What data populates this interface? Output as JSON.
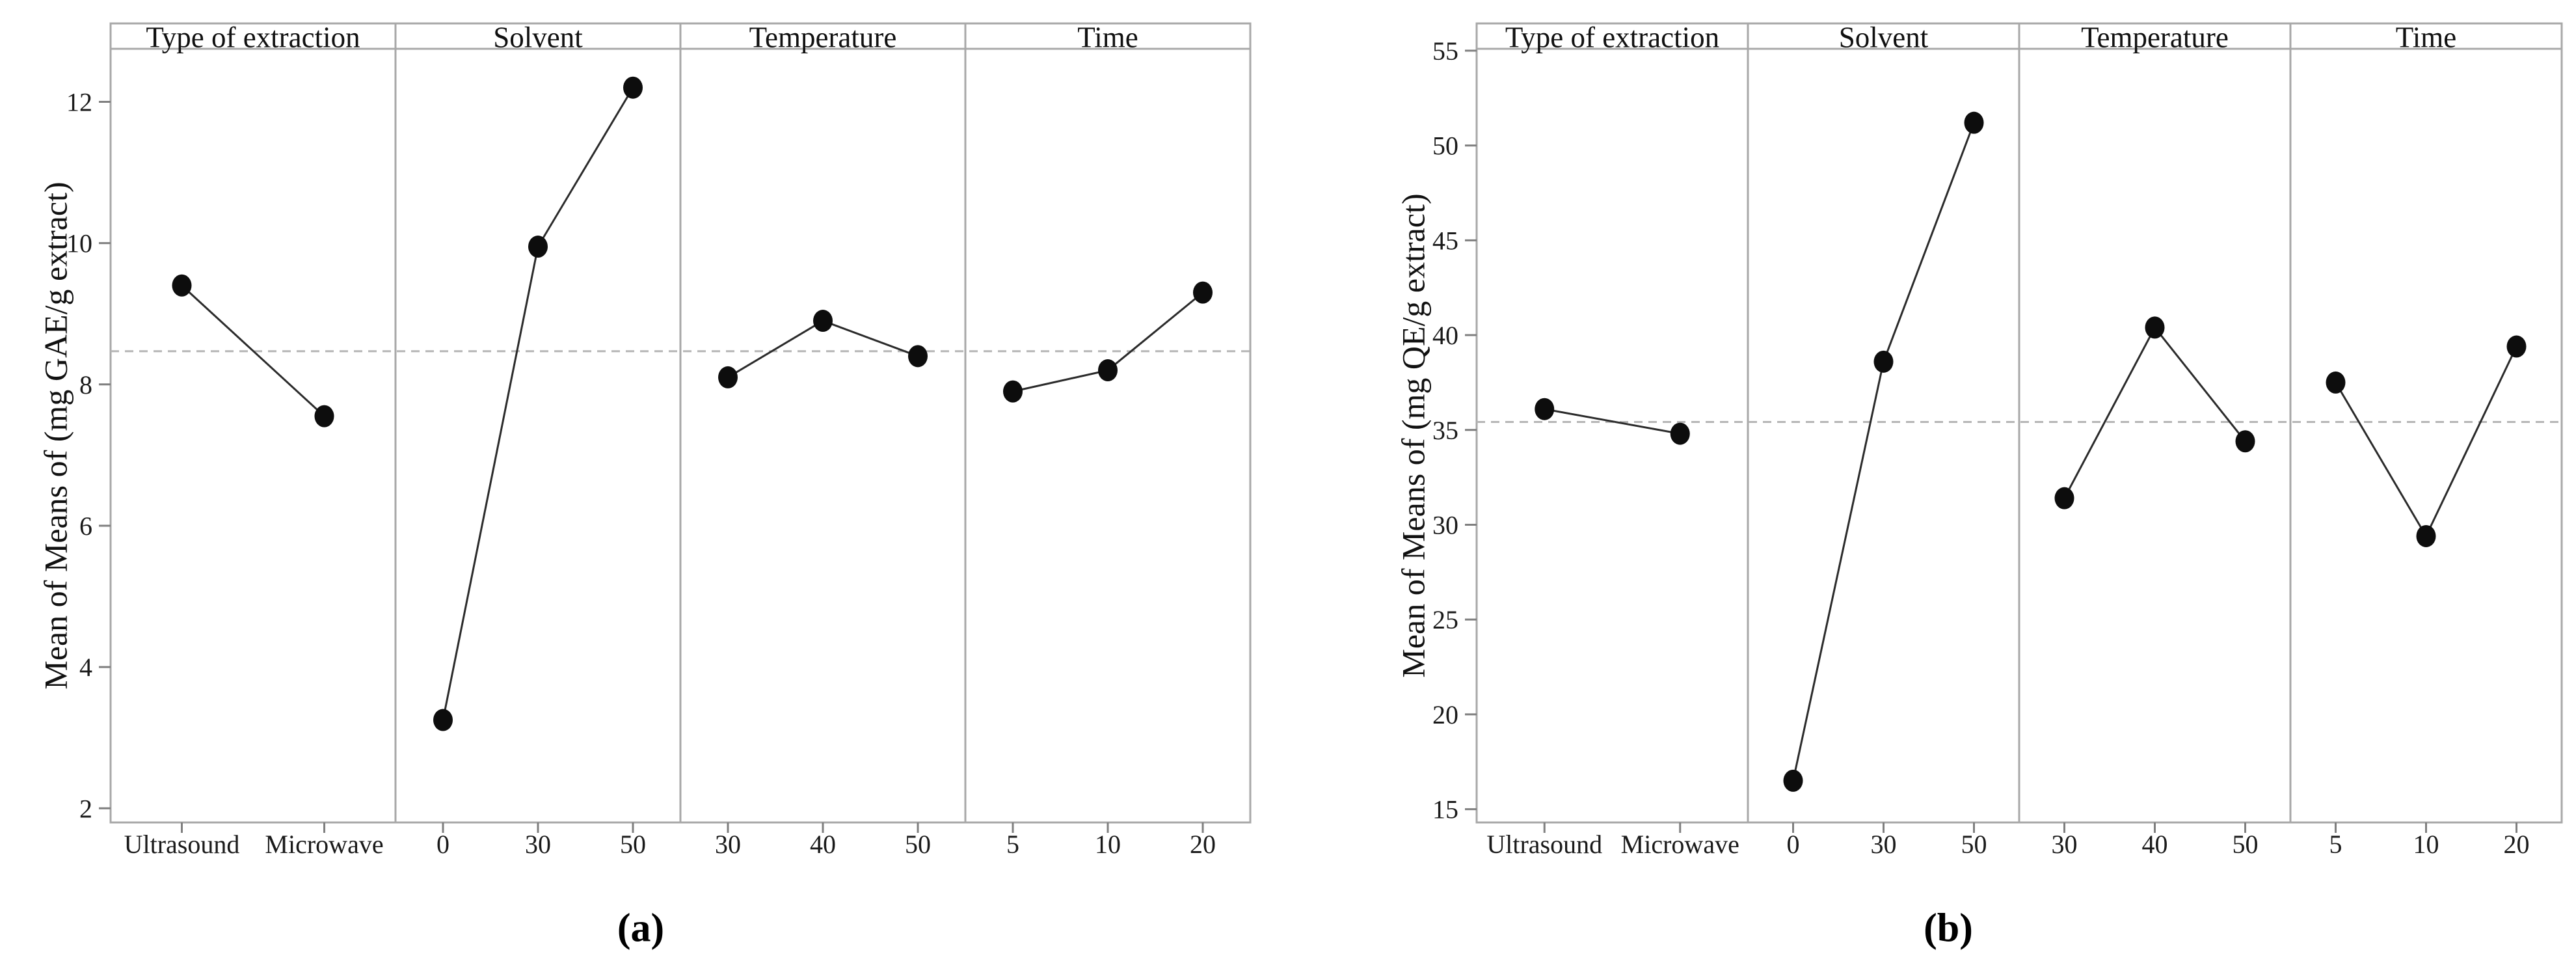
{
  "style": {
    "background_color": "#ffffff",
    "border_color": "#a8a8a8",
    "tick_color": "#7f7f7f",
    "mean_line_color": "#b5b5b5",
    "line_color": "#2b2b2b",
    "marker_color": "#0d0d0d",
    "text_color": "#1a1a1a"
  },
  "chart_data": [
    {
      "id": "a",
      "type": "line",
      "subtype": "main-effects-plot",
      "caption": "(a)",
      "ylabel": "Mean of Means of (mg GAE/g extract)",
      "yticks": [
        2,
        4,
        6,
        8,
        10,
        12
      ],
      "ylim": [
        1.8,
        12.75
      ],
      "grid": false,
      "legend": "none",
      "grand_mean": 8.47,
      "grand_mean_style": "dashed",
      "panels": [
        {
          "header": "Type of extraction",
          "categories": [
            "Ultrasound",
            "Microwave"
          ],
          "values": [
            9.4,
            7.55
          ]
        },
        {
          "header": "Solvent",
          "categories": [
            "0",
            "30",
            "50"
          ],
          "values": [
            3.25,
            9.95,
            12.2
          ]
        },
        {
          "header": "Temperature",
          "categories": [
            "30",
            "40",
            "50"
          ],
          "values": [
            8.1,
            8.9,
            8.4
          ]
        },
        {
          "header": "Time",
          "categories": [
            "5",
            "10",
            "20"
          ],
          "values": [
            7.9,
            8.2,
            9.3
          ]
        }
      ]
    },
    {
      "id": "b",
      "type": "line",
      "subtype": "main-effects-plot",
      "caption": "(b)",
      "ylabel": "Mean of Means of (mg QE/g extract)",
      "yticks": [
        15,
        20,
        25,
        30,
        35,
        40,
        45,
        50,
        55
      ],
      "ylim": [
        14.3,
        55.1
      ],
      "grid": false,
      "legend": "none",
      "grand_mean": 35.42,
      "grand_mean_style": "dashed",
      "panels": [
        {
          "header": "Type of extraction",
          "categories": [
            "Ultrasound",
            "Microwave"
          ],
          "values": [
            36.1,
            34.8
          ]
        },
        {
          "header": "Solvent",
          "categories": [
            "0",
            "30",
            "50"
          ],
          "values": [
            16.5,
            38.6,
            51.2
          ]
        },
        {
          "header": "Temperature",
          "categories": [
            "30",
            "40",
            "50"
          ],
          "values": [
            31.4,
            40.4,
            34.4
          ]
        },
        {
          "header": "Time",
          "categories": [
            "5",
            "10",
            "20"
          ],
          "values": [
            37.5,
            29.4,
            39.4
          ]
        }
      ]
    }
  ]
}
